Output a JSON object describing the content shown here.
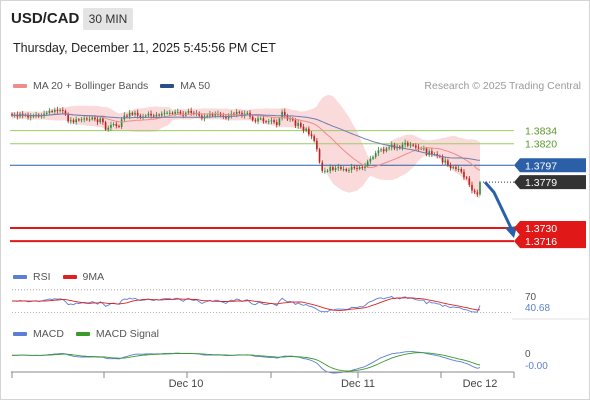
{
  "header": {
    "symbol": "USD/CAD",
    "timeframe": "30 MIN",
    "datetime": "Thursday, December 11, 2025 5:45:56 PM CET",
    "research": "Research © 2025 Trading Central"
  },
  "legends": {
    "main": [
      {
        "label": "MA 20 + Bollinger Bands",
        "color": "#f08c8c"
      },
      {
        "label": "MA 50",
        "color": "#2b4f8c"
      }
    ],
    "rsi": [
      {
        "label": "RSI",
        "color": "#5b7fd6"
      },
      {
        "label": "9MA",
        "color": "#e02020"
      }
    ],
    "macd": [
      {
        "label": "MACD",
        "color": "#5b7fd6"
      },
      {
        "label": "MACD Signal",
        "color": "#3a9a2a"
      }
    ]
  },
  "colors": {
    "bull": "#2e8b3a",
    "bear": "#c02020",
    "band_fill": "#f9d4d4",
    "ma20": "#f08c8c",
    "ma50": "#6a7fb0",
    "resistance": "#9ccc65",
    "support": "#e01818",
    "pivot": "#2b5fa8",
    "arrow": "#2b5fa8"
  },
  "chart_data": [
    {
      "type": "candlestick",
      "name": "price",
      "ylim": [
        1.3698,
        1.3872
      ],
      "x_labels": [
        "Dec 10",
        "Dec 11",
        "Dec 12"
      ],
      "levels": [
        {
          "value": 1.3834,
          "kind": "resistance",
          "label": "1.3834"
        },
        {
          "value": 1.382,
          "kind": "resistance",
          "label": "1.3820"
        },
        {
          "value": 1.3797,
          "kind": "pivot",
          "label": "1.3797"
        },
        {
          "value": 1.3779,
          "kind": "last",
          "label": "1.3779"
        },
        {
          "value": 1.373,
          "kind": "support",
          "label": "1.3730"
        },
        {
          "value": 1.3716,
          "kind": "support",
          "label": "1.3716"
        }
      ],
      "forecast_path": [
        1.3779,
        1.3768,
        1.373
      ],
      "close": [
        1.385,
        1.3851,
        1.3849,
        1.3852,
        1.385,
        1.3851,
        1.3848,
        1.3849,
        1.385,
        1.3851,
        1.3849,
        1.385,
        1.3852,
        1.3853,
        1.3855,
        1.3854,
        1.3856,
        1.3855,
        1.3856,
        1.3855,
        1.3851,
        1.3844,
        1.3845,
        1.3843,
        1.3846,
        1.3845,
        1.3846,
        1.3847,
        1.3846,
        1.3846,
        1.3848,
        1.3846,
        1.3843,
        1.3847,
        1.3843,
        1.3835,
        1.3837,
        1.384,
        1.3841,
        1.3839,
        1.3838,
        1.3846,
        1.385,
        1.3849,
        1.3853,
        1.3851,
        1.3853,
        1.385,
        1.3848,
        1.3849,
        1.385,
        1.3852,
        1.385,
        1.3849,
        1.3851,
        1.385,
        1.3852,
        1.3853,
        1.3853,
        1.3853,
        1.3852,
        1.3854,
        1.3854,
        1.3852,
        1.385,
        1.3853,
        1.3855,
        1.3853,
        1.3852,
        1.3853,
        1.385,
        1.3847,
        1.3849,
        1.385,
        1.3852,
        1.385,
        1.3852,
        1.3852,
        1.385,
        1.3849,
        1.3847,
        1.385,
        1.3852,
        1.3851,
        1.3854,
        1.3853,
        1.385,
        1.3852,
        1.3853,
        1.3849,
        1.3845,
        1.3844,
        1.3847,
        1.3847,
        1.3844,
        1.3843,
        1.3844,
        1.3845,
        1.3843,
        1.384,
        1.3847,
        1.3854,
        1.385,
        1.3846,
        1.3847,
        1.3845,
        1.3839,
        1.3842,
        1.3838,
        1.3834,
        1.3836,
        1.383,
        1.3828,
        1.3823,
        1.3814,
        1.38,
        1.3791,
        1.3791,
        1.3791,
        1.3795,
        1.3792,
        1.3794,
        1.3795,
        1.3793,
        1.3793,
        1.3791,
        1.3792,
        1.3795,
        1.3794,
        1.3793,
        1.3795,
        1.3794,
        1.3796,
        1.3801,
        1.3804,
        1.3806,
        1.381,
        1.3813,
        1.3814,
        1.3812,
        1.3815,
        1.3816,
        1.3819,
        1.3815,
        1.3817,
        1.3815,
        1.3819,
        1.3821,
        1.3818,
        1.3819,
        1.3818,
        1.3816,
        1.3815,
        1.3815,
        1.3815,
        1.3808,
        1.3812,
        1.3809,
        1.3809,
        1.3807,
        1.3806,
        1.38,
        1.3802,
        1.3797,
        1.3794,
        1.3795,
        1.3793,
        1.3793,
        1.379,
        1.3784,
        1.3783,
        1.3776,
        1.377,
        1.3768,
        1.3766,
        1.3779
      ]
    },
    {
      "type": "line",
      "name": "RSI",
      "ylim": [
        20,
        75
      ],
      "level_label": "70",
      "last_value_label": "40.68",
      "series": [
        {
          "name": "RSI"
        },
        {
          "name": "9MA"
        }
      ]
    },
    {
      "type": "line",
      "name": "MACD",
      "ylim": [
        -0.0012,
        0.001
      ],
      "zero_label": "0",
      "last_value_label": "-0.00",
      "series": [
        {
          "name": "MACD"
        },
        {
          "name": "MACD Signal"
        }
      ]
    }
  ]
}
